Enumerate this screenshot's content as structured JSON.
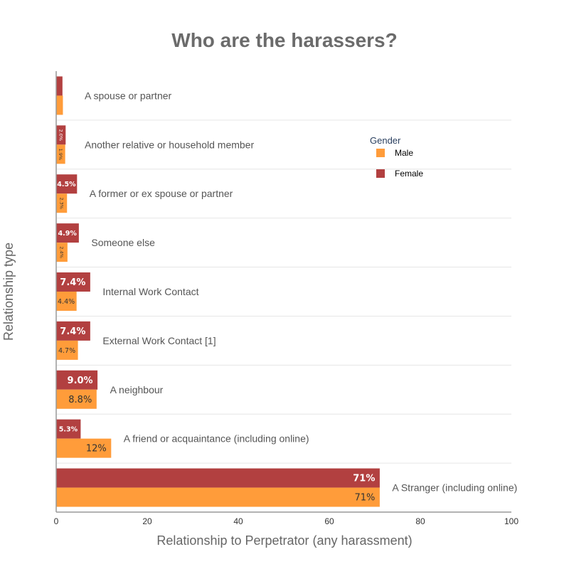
{
  "chart_data": {
    "type": "bar",
    "orientation": "horizontal",
    "title": "Who are the harassers?",
    "xlabel": "Relationship to Perpetrator (any harassment)",
    "ylabel": "Relationship type",
    "xlim": [
      0,
      100
    ],
    "xticks": [
      "0",
      "20",
      "40",
      "60",
      "80",
      "100"
    ],
    "grid": "horizontal",
    "legend": {
      "title": "Gender",
      "placement": "top-right"
    },
    "categories": [
      "A spouse or partner",
      "Another relative or household member",
      "A former or ex spouse or partner",
      "Someone else",
      "Internal Work Contact",
      "External Work Contact [1]",
      "A neighbour",
      "A friend or acquaintance (including online)",
      "A Stranger (including online)"
    ],
    "series": [
      {
        "name": "Male",
        "color": "#ff9c3a",
        "values": [
          1.4,
          1.9,
          2.3,
          2.4,
          4.4,
          4.7,
          8.8,
          12,
          71
        ],
        "labels": [
          "",
          "1.9%",
          "2.3%",
          "2.4%",
          "4.4%",
          "4.7%",
          "8.8%",
          "12%",
          "71%"
        ]
      },
      {
        "name": "Female",
        "color": "#b24040",
        "values": [
          1.3,
          2.0,
          4.5,
          4.9,
          7.4,
          7.4,
          9.0,
          5.3,
          71
        ],
        "labels": [
          "",
          "2.0%",
          "4.5%",
          "4.9%",
          "7.4%",
          "7.4%",
          "9.0%",
          "5.3%",
          "71%"
        ]
      }
    ]
  }
}
